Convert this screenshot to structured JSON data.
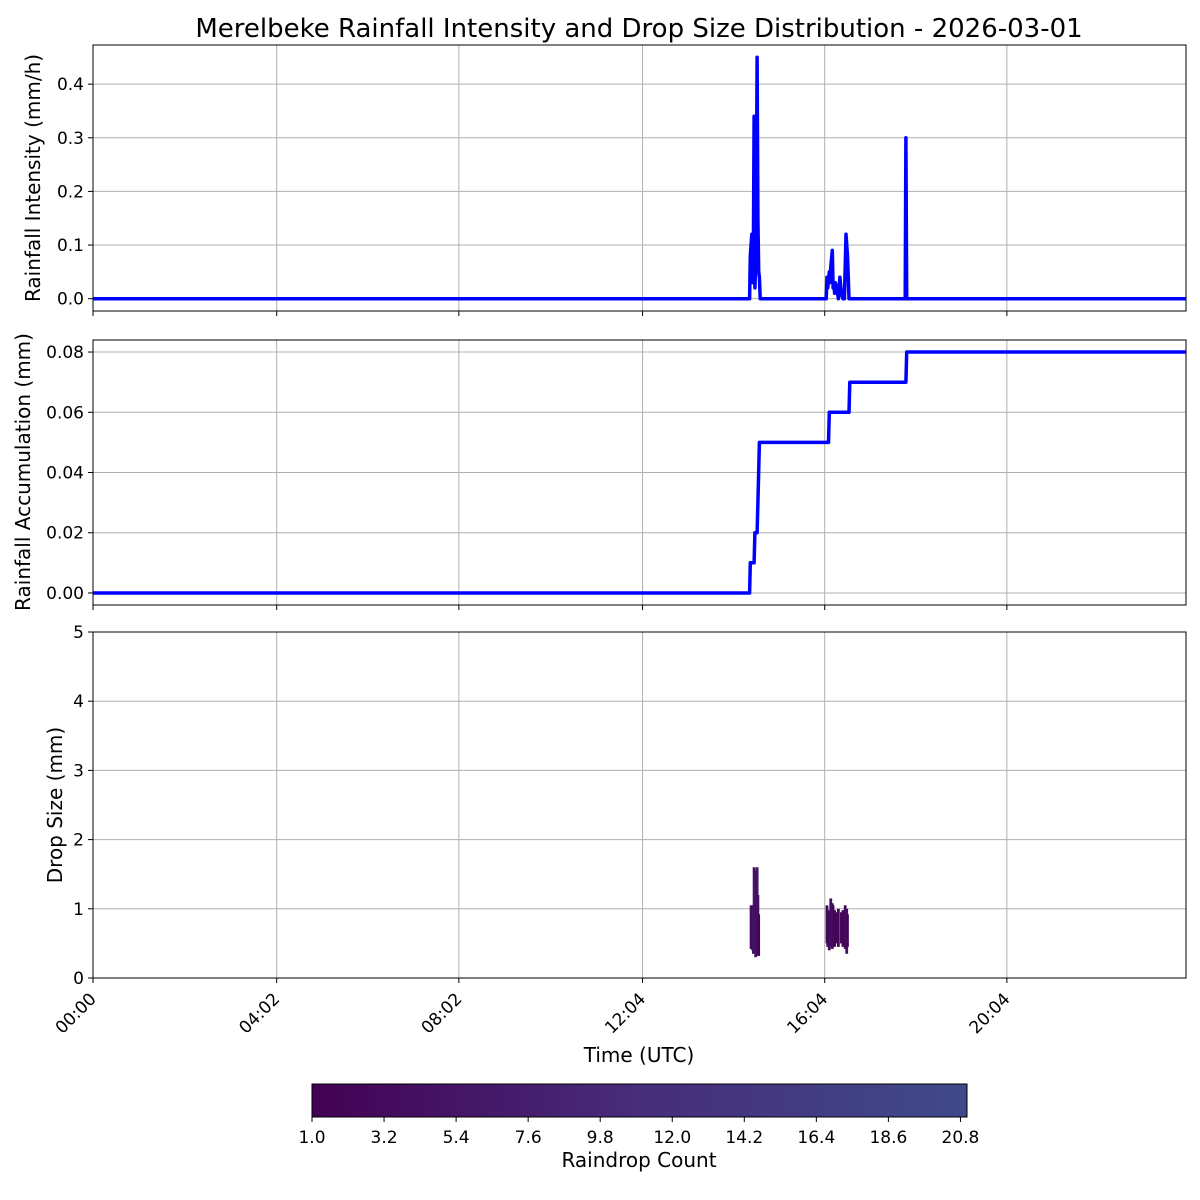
{
  "chart_data": [
    {
      "type": "line",
      "title": "Merelbeke Rainfall Intensity and Drop Size Distribution - 2026-03-01",
      "xlabel": "",
      "ylabel": "Rainfall Intensity (mm/h)",
      "xlim": [
        "00:00",
        "24:00"
      ],
      "ylim": [
        -0.023,
        0.473
      ],
      "yticks": [
        "0.0",
        "0.1",
        "0.2",
        "0.3",
        "0.4"
      ],
      "grid": true,
      "color": "#0000ff",
      "series": [
        {
          "x": [
            "00:00",
            "14:25",
            "14:26",
            "14:28",
            "14:29",
            "14:30",
            "14:31",
            "14:32",
            "14:33",
            "14:34",
            "14:35",
            "14:36",
            "14:37",
            "14:38",
            "14:39",
            "14:40",
            "14:41",
            "14:42",
            "14:43",
            "14:44",
            "14:45",
            "14:46",
            "14:47",
            "14:48",
            "14:50",
            "16:06",
            "16:07",
            "16:08",
            "16:10",
            "16:11",
            "16:12",
            "16:14",
            "16:15",
            "16:16",
            "16:17",
            "16:18",
            "16:20",
            "16:22",
            "16:24",
            "16:26",
            "16:28",
            "16:30",
            "16:32",
            "16:34",
            "16:36",
            "16:37",
            "16:38",
            "16:40",
            "16:41",
            "16:42",
            "17:50",
            "17:51",
            "17:52",
            "17:53",
            "24:00"
          ],
          "values": [
            0,
            0,
            0.08,
            0.12,
            0.03,
            0.1,
            0.34,
            0.02,
            0.06,
            0.2,
            0.45,
            0.15,
            0.05,
            0.04,
            0,
            0,
            0,
            0,
            0,
            0,
            0,
            0,
            0,
            0,
            0,
            0,
            0.04,
            0.02,
            0.05,
            0.03,
            0.06,
            0.09,
            0.02,
            0.03,
            0.01,
            0.03,
            0.02,
            0,
            0.04,
            0.01,
            0,
            0,
            0.12,
            0.08,
            0,
            0,
            0,
            0,
            0,
            0,
            0,
            0.3,
            0,
            0,
            0
          ]
        }
      ]
    },
    {
      "type": "line",
      "xlabel": "",
      "ylabel": "Rainfall Accumulation (mm)",
      "xlim": [
        "00:00",
        "24:00"
      ],
      "ylim": [
        -0.004,
        0.084
      ],
      "yticks": [
        "0.00",
        "0.02",
        "0.04",
        "0.06",
        "0.08"
      ],
      "grid": true,
      "color": "#0000ff",
      "series": [
        {
          "x": [
            "00:00",
            "14:25",
            "14:26",
            "14:31",
            "14:32",
            "14:35",
            "14:36",
            "14:38",
            "14:39",
            "16:09",
            "16:10",
            "16:36",
            "16:37",
            "17:51",
            "17:52",
            "24:00"
          ],
          "values": [
            0,
            0,
            0.01,
            0.01,
            0.02,
            0.02,
            0.03,
            0.05,
            0.05,
            0.05,
            0.06,
            0.06,
            0.07,
            0.07,
            0.08,
            0.08
          ]
        }
      ]
    },
    {
      "type": "heatmap",
      "xlabel": "Time (UTC)",
      "ylabel": "Drop Size (mm)",
      "xlim": [
        "00:00",
        "24:00"
      ],
      "ylim": [
        0,
        5
      ],
      "xticks": [
        "00:00",
        "04:02",
        "08:02",
        "12:04",
        "16:04",
        "20:04"
      ],
      "yticks": [
        "0",
        "1",
        "2",
        "3",
        "4",
        "5"
      ],
      "grid": true,
      "cells": [
        {
          "t": "14:27",
          "d0": 0.42,
          "d1": 1.05,
          "c": 3
        },
        {
          "t": "14:28",
          "d0": 0.45,
          "d1": 1.0,
          "c": 4
        },
        {
          "t": "14:29",
          "d0": 0.4,
          "d1": 1.05,
          "c": 3
        },
        {
          "t": "14:30",
          "d0": 0.35,
          "d1": 1.05,
          "c": 5
        },
        {
          "t": "14:31",
          "d0": 0.45,
          "d1": 1.6,
          "c": 4
        },
        {
          "t": "14:32",
          "d0": 0.4,
          "d1": 1.45,
          "c": 6
        },
        {
          "t": "14:33",
          "d0": 0.3,
          "d1": 1.1,
          "c": 5
        },
        {
          "t": "14:34",
          "d0": 0.4,
          "d1": 1.55,
          "c": 3
        },
        {
          "t": "14:35",
          "d0": 0.32,
          "d1": 1.6,
          "c": 5
        },
        {
          "t": "14:36",
          "d0": 0.35,
          "d1": 1.2,
          "c": 4
        },
        {
          "t": "14:37",
          "d0": 0.32,
          "d1": 0.92,
          "c": 2
        },
        {
          "t": "16:07",
          "d0": 0.5,
          "d1": 1.05,
          "c": 2
        },
        {
          "t": "16:08",
          "d0": 0.45,
          "d1": 0.9,
          "c": 3
        },
        {
          "t": "16:10",
          "d0": 0.4,
          "d1": 0.98,
          "c": 3
        },
        {
          "t": "16:11",
          "d0": 0.5,
          "d1": 0.95,
          "c": 2
        },
        {
          "t": "16:12",
          "d0": 0.45,
          "d1": 1.15,
          "c": 4
        },
        {
          "t": "16:14",
          "d0": 0.42,
          "d1": 1.08,
          "c": 3
        },
        {
          "t": "16:15",
          "d0": 0.5,
          "d1": 1.05,
          "c": 3
        },
        {
          "t": "16:17",
          "d0": 0.45,
          "d1": 0.98,
          "c": 2
        },
        {
          "t": "16:19",
          "d0": 0.5,
          "d1": 0.95,
          "c": 2
        },
        {
          "t": "16:22",
          "d0": 0.45,
          "d1": 1.0,
          "c": 2
        },
        {
          "t": "16:26",
          "d0": 0.5,
          "d1": 0.95,
          "c": 3
        },
        {
          "t": "16:28",
          "d0": 0.45,
          "d1": 0.98,
          "c": 2
        },
        {
          "t": "16:31",
          "d0": 0.42,
          "d1": 1.05,
          "c": 3
        },
        {
          "t": "16:33",
          "d0": 0.35,
          "d1": 1.0,
          "c": 4
        },
        {
          "t": "16:34",
          "d0": 0.45,
          "d1": 0.92,
          "c": 2
        }
      ]
    }
  ],
  "colorbar": {
    "label": "Raindrop Count",
    "ticks": [
      "1.0",
      "3.2",
      "5.4",
      "7.6",
      "9.8",
      "12.0",
      "14.2",
      "16.4",
      "18.6",
      "20.8"
    ],
    "range": [
      1.0,
      21.0
    ],
    "colors": [
      "#440154",
      "#472d7b",
      "#3f4a8a"
    ]
  }
}
